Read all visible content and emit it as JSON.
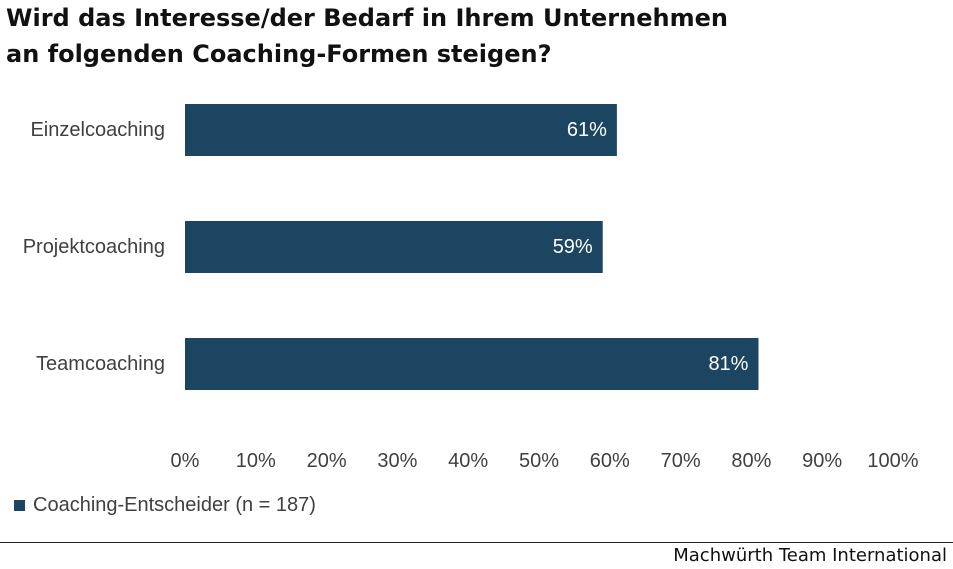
{
  "title_line1": "Wird das Interesse/der Bedarf in Ihrem Unternehmen",
  "title_line2": "an folgenden Coaching-Formen steigen?",
  "source": "Machwürth Team International",
  "colors": {
    "bar": "#1b4560",
    "bar_text": "#ffffff",
    "label_text": "#404040"
  },
  "chart_data": {
    "type": "bar",
    "orientation": "horizontal",
    "categories": [
      "Einzelcoaching",
      "Projektcoaching",
      "Teamcoaching"
    ],
    "series": [
      {
        "name": "Coaching-Entscheider (n = 187)",
        "values": [
          61,
          59,
          81
        ]
      }
    ],
    "data_labels": [
      "61%",
      "59%",
      "81%"
    ],
    "xlim": [
      0,
      100
    ],
    "xticks": [
      0,
      10,
      20,
      30,
      40,
      50,
      60,
      70,
      80,
      90,
      100
    ],
    "xtick_labels": [
      "0%",
      "10%",
      "20%",
      "30%",
      "40%",
      "50%",
      "60%",
      "70%",
      "80%",
      "90%",
      "100%"
    ],
    "grid": false,
    "legend_position": "bottom-left"
  }
}
